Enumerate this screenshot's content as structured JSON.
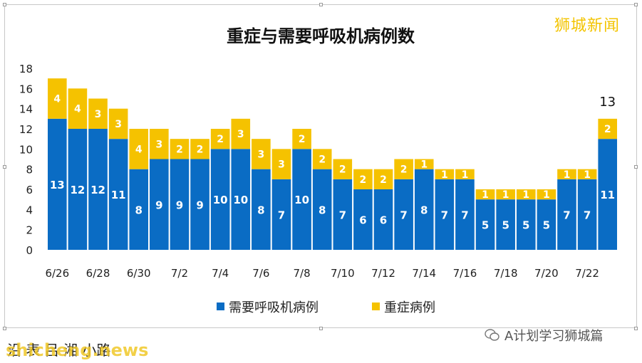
{
  "chart_data": {
    "type": "bar",
    "stacked": true,
    "title": "重症与需要呼吸机病例数",
    "categories": [
      "6/26",
      "6/27",
      "6/28",
      "6/29",
      "6/30",
      "7/1",
      "7/2",
      "7/3",
      "7/4",
      "7/5",
      "7/6",
      "7/7",
      "7/8",
      "7/9",
      "7/10",
      "7/11",
      "7/12",
      "7/13",
      "7/14",
      "7/15",
      "7/16",
      "7/17",
      "7/18",
      "7/19",
      "7/20",
      "7/21",
      "7/22",
      "7/23"
    ],
    "x_tick_labels": [
      "6/26",
      "6/28",
      "6/30",
      "7/2",
      "7/4",
      "7/6",
      "7/8",
      "7/10",
      "7/12",
      "7/14",
      "7/16",
      "7/18",
      "7/20",
      "7/22"
    ],
    "series": [
      {
        "name": "需要呼吸机病例",
        "color": "#0a6cc4",
        "values": [
          13,
          12,
          12,
          11,
          8,
          9,
          9,
          9,
          10,
          10,
          8,
          7,
          10,
          8,
          7,
          6,
          6,
          7,
          8,
          7,
          7,
          5,
          5,
          5,
          5,
          7,
          7,
          11
        ]
      },
      {
        "name": "重症病例",
        "color": "#f5c200",
        "values": [
          4,
          4,
          3,
          3,
          4,
          3,
          2,
          2,
          2,
          3,
          3,
          3,
          2,
          2,
          2,
          2,
          2,
          2,
          1,
          1,
          1,
          1,
          1,
          1,
          1,
          1,
          1,
          2
        ]
      }
    ],
    "ylim": [
      0,
      18
    ],
    "y_ticks": [
      0,
      2,
      4,
      6,
      8,
      10,
      12,
      14,
      16,
      18
    ],
    "annotation": "13",
    "legend_position": "bottom",
    "grid": false
  },
  "brand": "狮城新闻",
  "footer": {
    "left_text": "沿 表   吕 湘 小路",
    "url": "shicheng.news",
    "right_text": "A计划学习狮城篇"
  }
}
